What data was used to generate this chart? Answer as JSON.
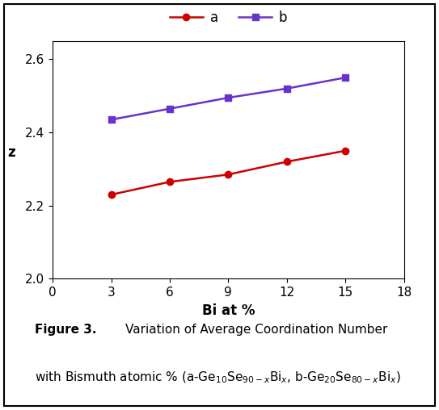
{
  "x": [
    3,
    6,
    9,
    12,
    15
  ],
  "y_a": [
    2.23,
    2.265,
    2.285,
    2.32,
    2.35
  ],
  "y_b": [
    2.435,
    2.465,
    2.495,
    2.52,
    2.55
  ],
  "color_a": "#cc0000",
  "color_b": "#6633cc",
  "xlabel": "Bi at %",
  "ylabel": "z",
  "xlim": [
    0,
    18
  ],
  "ylim": [
    2.0,
    2.65
  ],
  "xticks": [
    0,
    3,
    6,
    9,
    12,
    15,
    18
  ],
  "yticks": [
    2.0,
    2.2,
    2.4,
    2.6
  ],
  "legend_a": "a",
  "legend_b": "b"
}
